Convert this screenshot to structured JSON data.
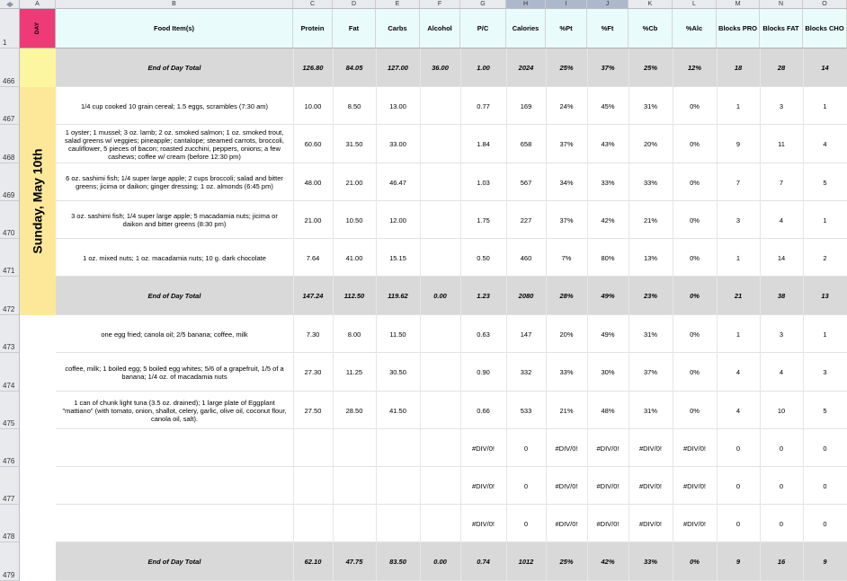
{
  "columns": {
    "corner": "",
    "letters": [
      "A",
      "B",
      "C",
      "D",
      "E",
      "F",
      "G",
      "H",
      "I",
      "J",
      "K",
      "L",
      "M",
      "N",
      "O"
    ],
    "header_row_number": "1",
    "day_label": "DAY",
    "headers": [
      "Food Item(s)",
      "Protein",
      "Fat",
      "Carbs",
      "Alcohol",
      "P/C",
      "Calories",
      "%Pt",
      "%Ft",
      "%Cb",
      "%Alc",
      "Blocks PRO",
      "Blocks FAT",
      "Blocks CHO"
    ]
  },
  "day_label_side": "Sunday, May 10th",
  "rows": [
    {
      "num": "466",
      "food": "End of Day Total",
      "total": true,
      "values": [
        "126.80",
        "84.05",
        "127.00",
        "36.00",
        "1.00",
        "2024",
        "25%",
        "37%",
        "25%",
        "12%",
        "18",
        "28",
        "14"
      ]
    },
    {
      "num": "467",
      "food": "1/4 cup cooked 10 grain cereal; 1.5 eggs, scrambles (7:30 am)",
      "total": false,
      "values": [
        "10.00",
        "8.50",
        "13.00",
        "",
        "0.77",
        "169",
        "24%",
        "45%",
        "31%",
        "0%",
        "1",
        "3",
        "1"
      ]
    },
    {
      "num": "468",
      "food": "1 oyster; 1 mussel; 3 oz. lamb; 2 oz. smoked salmon; 1 oz. smoked trout, salad greens w/ veggies; pineapple; cantalope; steamed carrots, broccoli, cauliflower, 5 pieces of bacon; roasted zucchini, peppers, onions; a few cashews; coffee w/ cream (before 12:30 pm)",
      "total": false,
      "values": [
        "60.60",
        "31.50",
        "33.00",
        "",
        "1.84",
        "658",
        "37%",
        "43%",
        "20%",
        "0%",
        "9",
        "11",
        "4"
      ]
    },
    {
      "num": "469",
      "food": "6 oz. sashimi fish; 1/4 super large apple; 2 cups broccoli; salad and bitter greens; jicima or daikon; ginger dressing; 1 oz. almonds (6:45 pm)",
      "total": false,
      "values": [
        "48.00",
        "21.00",
        "46.47",
        "",
        "1.03",
        "567",
        "34%",
        "33%",
        "33%",
        "0%",
        "7",
        "7",
        "5"
      ]
    },
    {
      "num": "470",
      "food": "3 oz. sashimi fish; 1/4 super large apple; 5 macadamia nuts; jicima or daikon and bitter greens (8:30 pm)",
      "total": false,
      "values": [
        "21.00",
        "10.50",
        "12.00",
        "",
        "1.75",
        "227",
        "37%",
        "42%",
        "21%",
        "0%",
        "3",
        "4",
        "1"
      ]
    },
    {
      "num": "471",
      "food": "1 oz. mixed nuts; 1 oz. macadamia nuts; 10 g. dark chocolate",
      "total": false,
      "values": [
        "7.64",
        "41.00",
        "15.15",
        "",
        "0.50",
        "460",
        "7%",
        "80%",
        "13%",
        "0%",
        "1",
        "14",
        "2"
      ]
    },
    {
      "num": "472",
      "food": "End of Day Total",
      "total": true,
      "values": [
        "147.24",
        "112.50",
        "119.62",
        "0.00",
        "1.23",
        "2080",
        "28%",
        "49%",
        "23%",
        "0%",
        "21",
        "38",
        "13"
      ]
    },
    {
      "num": "473",
      "food": "one egg fried; canola oil; 2/5 banana; coffee, milk",
      "total": false,
      "values": [
        "7.30",
        "8.00",
        "11.50",
        "",
        "0.63",
        "147",
        "20%",
        "49%",
        "31%",
        "0%",
        "1",
        "3",
        "1"
      ]
    },
    {
      "num": "474",
      "food": "coffee, milk; 1 boiled egg; 5 boiled egg whites; 5/6 of a grapefruit, 1/5 of a banana; 1/4 oz. of macadamia nuts",
      "total": false,
      "values": [
        "27.30",
        "11.25",
        "30.50",
        "",
        "0.90",
        "332",
        "33%",
        "30%",
        "37%",
        "0%",
        "4",
        "4",
        "3"
      ]
    },
    {
      "num": "475",
      "food": "1 can of chunk light tuna (3.5 oz. drained); 1 large plate of Eggplant \"mattiano\" (with tomato, onion, shallot, celery, garlic, olive oil, coconut flour, canola oil, salt).",
      "total": false,
      "values": [
        "27.50",
        "28.50",
        "41.50",
        "",
        "0.66",
        "533",
        "21%",
        "48%",
        "31%",
        "0%",
        "4",
        "10",
        "5"
      ]
    },
    {
      "num": "476",
      "food": "",
      "total": false,
      "values": [
        "",
        "",
        "",
        "",
        "#DIV/0!",
        "0",
        "#DIV/0!",
        "#DIV/0!",
        "#DIV/0!",
        "#DIV/0!",
        "0",
        "0",
        "0"
      ]
    },
    {
      "num": "477",
      "food": "",
      "total": false,
      "values": [
        "",
        "",
        "",
        "",
        "#DIV/0!",
        "0",
        "#DIV/0!",
        "#DIV/0!",
        "#DIV/0!",
        "#DIV/0!",
        "0",
        "0",
        "0"
      ]
    },
    {
      "num": "478",
      "food": "",
      "total": false,
      "values": [
        "",
        "",
        "",
        "",
        "#DIV/0!",
        "0",
        "#DIV/0!",
        "#DIV/0!",
        "#DIV/0!",
        "#DIV/0!",
        "0",
        "0",
        "0"
      ]
    },
    {
      "num": "479",
      "food": "End of Day Total",
      "total": true,
      "values": [
        "62.10",
        "47.75",
        "83.50",
        "0.00",
        "0.74",
        "1012",
        "25%",
        "42%",
        "33%",
        "0%",
        "9",
        "16",
        "9"
      ]
    }
  ],
  "colors": {
    "day_header": "#ef3a78",
    "sunday_band": "#fde89a",
    "total_row": "#d9d9d9",
    "header_fill": "#eafbfc",
    "selected_cols": "#aeb8cc"
  }
}
